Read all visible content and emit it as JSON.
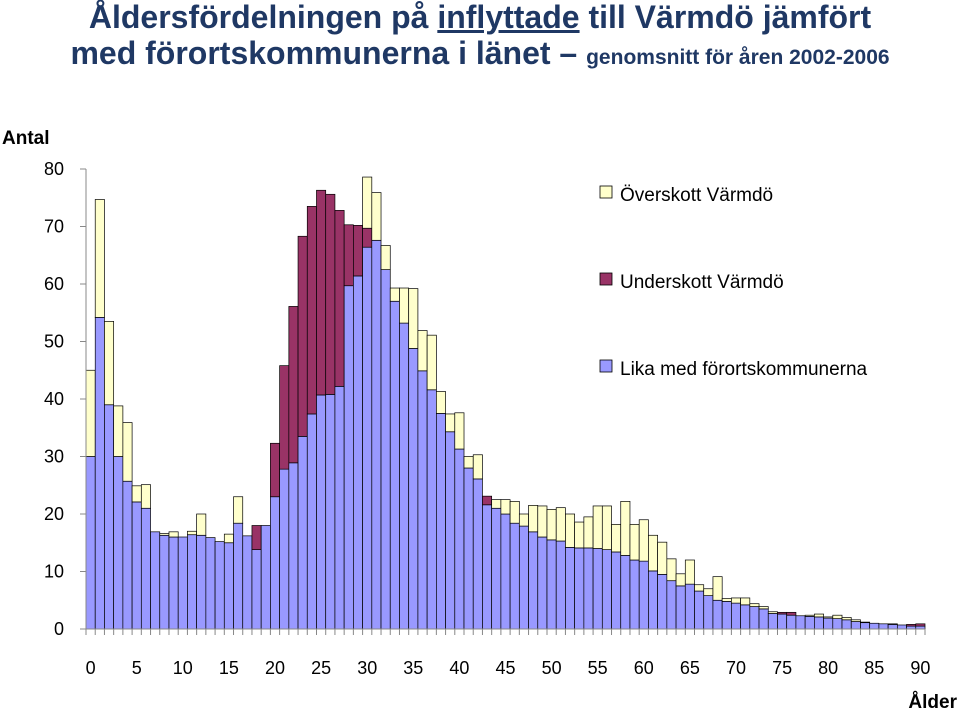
{
  "title": {
    "part1": "Åldersfördelningen på ",
    "underlined": "inflyttade",
    "part2": " till Värmdö jämfört",
    "line2": "med förortskommunerna i länet – ",
    "subtitle": "genomsnitt för åren 2002-2006"
  },
  "chart_data": {
    "type": "bar",
    "stacked": true,
    "ylabel": "Antal",
    "xlabel": "Ålder",
    "ylim": [
      0,
      80
    ],
    "yticks": [
      0,
      10,
      20,
      30,
      40,
      50,
      60,
      70,
      80
    ],
    "xticks": [
      0,
      5,
      10,
      15,
      20,
      25,
      30,
      35,
      40,
      45,
      50,
      55,
      60,
      65,
      70,
      75,
      80,
      85,
      90
    ],
    "x": [
      0,
      1,
      2,
      3,
      4,
      5,
      6,
      7,
      8,
      9,
      10,
      11,
      12,
      13,
      14,
      15,
      16,
      17,
      18,
      19,
      20,
      21,
      22,
      23,
      24,
      25,
      26,
      27,
      28,
      29,
      30,
      31,
      32,
      33,
      34,
      35,
      36,
      37,
      38,
      39,
      40,
      41,
      42,
      43,
      44,
      45,
      46,
      47,
      48,
      49,
      50,
      51,
      52,
      53,
      54,
      55,
      56,
      57,
      58,
      59,
      60,
      61,
      62,
      63,
      64,
      65,
      66,
      67,
      68,
      69,
      70,
      71,
      72,
      73,
      74,
      75,
      76,
      77,
      78,
      79,
      80,
      81,
      82,
      83,
      84,
      85,
      86,
      87,
      88,
      89,
      90
    ],
    "series": [
      {
        "name": "Lika med förortskommunerna",
        "color": "#9999ff",
        "values": [
          30,
          54.2,
          39,
          30,
          25.7,
          22.1,
          21,
          16.9,
          16.3,
          16,
          16,
          16.4,
          16.3,
          15.9,
          15.2,
          15,
          18.4,
          16.2,
          13.8,
          18,
          23,
          27.8,
          28.9,
          33.5,
          37.4,
          40.7,
          40.8,
          42.2,
          59.7,
          61.4,
          66.4,
          67.6,
          62.5,
          57,
          53.2,
          48.8,
          44.9,
          41.6,
          37.5,
          34.3,
          31.3,
          28,
          26.1,
          21.6,
          21,
          20,
          18.4,
          17.9,
          16.9,
          16,
          15.5,
          15.3,
          14.2,
          14.1,
          14.1,
          14,
          13.8,
          13.4,
          12.8,
          12,
          11.8,
          10.1,
          9.5,
          8.4,
          7.5,
          7.8,
          6.6,
          5.8,
          5,
          4.8,
          4.5,
          4.2,
          3.9,
          3.5,
          2.7,
          2.6,
          2.4,
          2.3,
          2.2,
          2.1,
          1.9,
          1.8,
          1.6,
          1.3,
          1.1,
          1,
          0.9,
          0.8,
          0.7,
          0.5,
          0.5
        ]
      },
      {
        "name": "Underskott Värmdö",
        "color": "#993366",
        "values": [
          0,
          0,
          0,
          0,
          0,
          0,
          0,
          0,
          0,
          0,
          0,
          0,
          0,
          0,
          0,
          0,
          0,
          0,
          4.2,
          0,
          9.3,
          18,
          27.2,
          34.8,
          36.1,
          35.6,
          34.8,
          30.6,
          10.6,
          8.8,
          3.3,
          0,
          0,
          0,
          0,
          0,
          0,
          0,
          0,
          0,
          0,
          0,
          0,
          1.5,
          0,
          0,
          0,
          0,
          0,
          0,
          0,
          0,
          0,
          0,
          0,
          0,
          0,
          0,
          0,
          0,
          0,
          0,
          0,
          0,
          0,
          0,
          0,
          0,
          0,
          0,
          0,
          0,
          0,
          0,
          0,
          0.3,
          0.5,
          0,
          0,
          0,
          0,
          0,
          0,
          0,
          0,
          0,
          0,
          0,
          0,
          0.3,
          0.4
        ]
      },
      {
        "name": "Överskott Värmdö",
        "color": "#ffffcc",
        "values": [
          15,
          20.5,
          14.5,
          8.8,
          10.2,
          2.8,
          4.1,
          0,
          0.3,
          0.9,
          0,
          0.6,
          3.7,
          0,
          0,
          1.5,
          4.6,
          0,
          0,
          0,
          0,
          0,
          0,
          0,
          0,
          0,
          0,
          0,
          0,
          0,
          8.9,
          8.3,
          4.2,
          2.3,
          6.1,
          10.4,
          7,
          9.5,
          3.8,
          3.1,
          6.3,
          2,
          4.2,
          0,
          1.5,
          2.5,
          3.8,
          2.1,
          4.6,
          5.4,
          5.3,
          5.8,
          5.8,
          4.5,
          5.4,
          7.4,
          7.6,
          4.8,
          9.4,
          6.2,
          7.2,
          6.2,
          5.6,
          3.8,
          2.1,
          4.2,
          1.1,
          1.2,
          4.1,
          0.5,
          0.9,
          1.2,
          0.5,
          0.4,
          0.3,
          0,
          0,
          0,
          0.2,
          0.5,
          0.2,
          0.6,
          0.4,
          0.3,
          0.1,
          0,
          0,
          0.1,
          0,
          0,
          0
        ]
      }
    ],
    "legend": {
      "placement": "top-right",
      "entries": [
        "Överskott Värmdö",
        "Underskott Värmdö",
        "Lika med förortskommunerna"
      ]
    },
    "grid": false
  }
}
